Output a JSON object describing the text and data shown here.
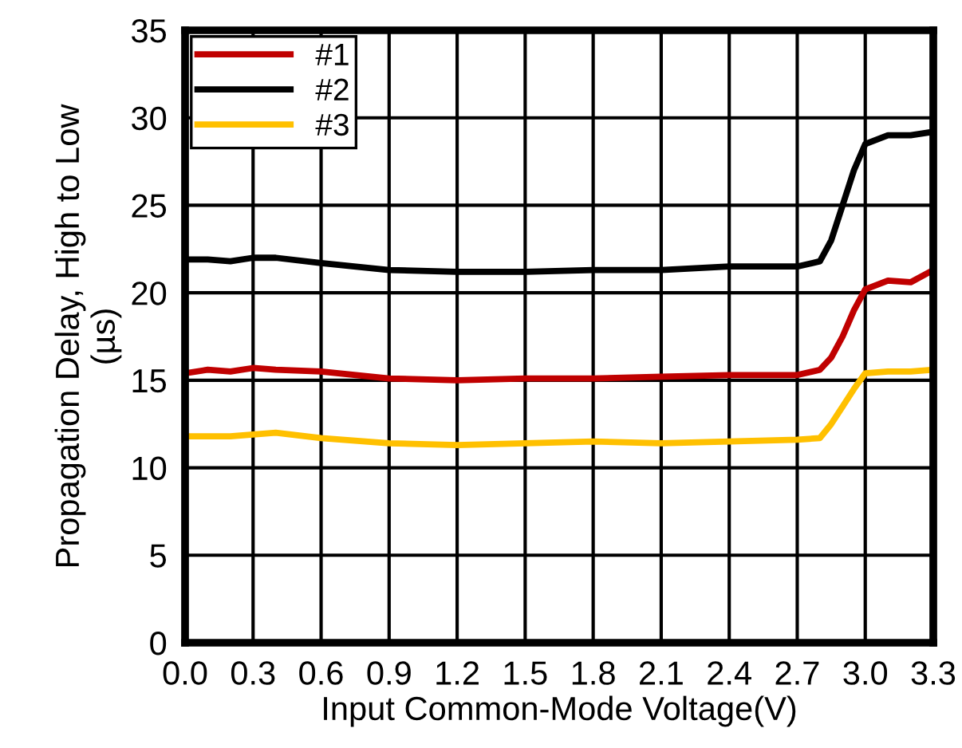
{
  "chart_data": {
    "type": "line",
    "xlabel": "Input Common-Mode Voltage(V)",
    "ylabel": "Propagation Delay, High to Low\n(µs)",
    "x": [
      0.0,
      0.1,
      0.2,
      0.3,
      0.4,
      0.6,
      0.9,
      1.2,
      1.5,
      1.8,
      2.1,
      2.4,
      2.7,
      2.8,
      2.85,
      2.9,
      2.95,
      3.0,
      3.1,
      3.2,
      3.3
    ],
    "series": [
      {
        "name": "#1",
        "color": "#c00000",
        "values": [
          15.4,
          15.6,
          15.5,
          15.7,
          15.6,
          15.5,
          15.1,
          15.0,
          15.1,
          15.1,
          15.2,
          15.3,
          15.3,
          15.6,
          16.3,
          17.5,
          19.0,
          20.2,
          20.7,
          20.6,
          21.3
        ]
      },
      {
        "name": "#2",
        "color": "#000000",
        "values": [
          21.9,
          21.9,
          21.8,
          22.0,
          22.0,
          21.7,
          21.3,
          21.2,
          21.2,
          21.3,
          21.3,
          21.5,
          21.5,
          21.8,
          23.0,
          25.0,
          27.0,
          28.5,
          29.0,
          29.0,
          29.2
        ]
      },
      {
        "name": "#3",
        "color": "#ffc000",
        "values": [
          11.8,
          11.8,
          11.8,
          11.9,
          12.0,
          11.7,
          11.4,
          11.3,
          11.4,
          11.5,
          11.4,
          11.5,
          11.6,
          11.7,
          12.5,
          13.5,
          14.5,
          15.4,
          15.5,
          15.5,
          15.6
        ]
      }
    ],
    "xlim": [
      0.0,
      3.3
    ],
    "xticks": [
      {
        "value": 0,
        "label": "0.0"
      },
      0.3,
      0.6,
      0.9,
      1.2,
      1.5,
      1.8,
      2.1,
      2.4,
      2.7,
      {
        "value": 3,
        "label": "3.0"
      },
      3.3
    ],
    "ylim": [
      0,
      35
    ],
    "yticks": [
      0,
      5,
      10,
      15,
      20,
      25,
      30,
      35
    ],
    "grid": true,
    "legend": "top left",
    "marker": "none",
    "line_style": "solid"
  }
}
